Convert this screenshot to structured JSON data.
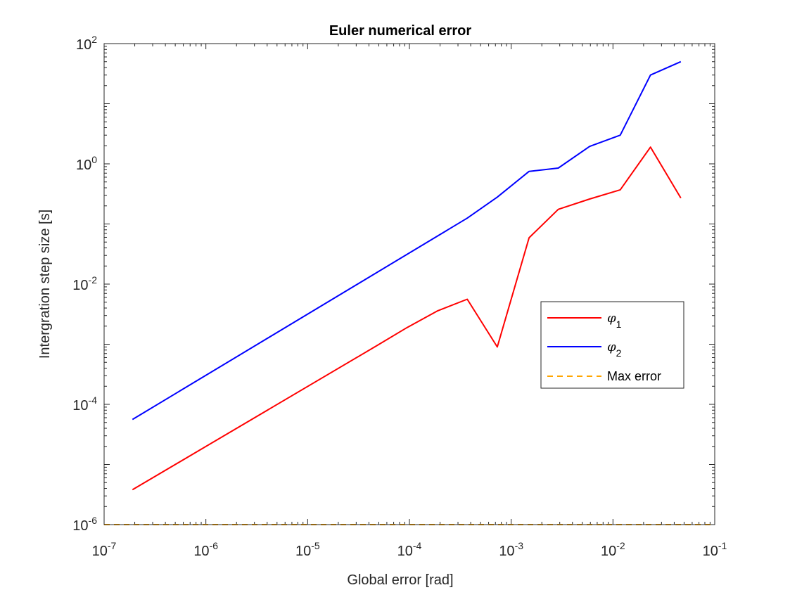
{
  "chart_data": {
    "type": "line",
    "title": "Euler numerical error",
    "xlabel": "Global error [rad]",
    "ylabel": "Intergration step size [s]",
    "xscale": "log",
    "yscale": "log",
    "xlim": [
      1e-07,
      0.1
    ],
    "ylim": [
      1e-06,
      100
    ],
    "grid": false,
    "legend_position": "right",
    "xticks": [
      {
        "base": "10",
        "exp": "-7"
      },
      {
        "base": "10",
        "exp": "-6"
      },
      {
        "base": "10",
        "exp": "-5"
      },
      {
        "base": "10",
        "exp": "-4"
      },
      {
        "base": "10",
        "exp": "-3"
      },
      {
        "base": "10",
        "exp": "-2"
      },
      {
        "base": "10",
        "exp": "-1"
      }
    ],
    "yticks": [
      {
        "base": "10",
        "exp": "-6"
      },
      {
        "base": "10",
        "exp": "-4"
      },
      {
        "base": "10",
        "exp": "-2"
      },
      {
        "base": "10",
        "exp": "0"
      },
      {
        "base": "10",
        "exp": "2"
      }
    ],
    "series": [
      {
        "name": "φ1",
        "name_symbol": "φ",
        "name_sub": "1",
        "color": "#ff0000",
        "dash": "solid",
        "x": [
          1.9e-07,
          4.8e-05,
          9.5e-05,
          0.00019,
          0.00037,
          0.00073,
          0.0015,
          0.0029,
          0.0059,
          0.0118,
          0.0234,
          0.0464
        ],
        "y": [
          3.8e-06,
          0.00095,
          0.0019,
          0.0036,
          0.0056,
          0.0009,
          0.059,
          0.175,
          0.26,
          0.37,
          1.9,
          0.27
        ]
      },
      {
        "name": "φ2",
        "name_symbol": "φ",
        "name_sub": "2",
        "color": "#0000ff",
        "dash": "solid",
        "x": [
          1.9e-07,
          0.00037,
          0.00073,
          0.0015,
          0.0029,
          0.0059,
          0.0118,
          0.0234,
          0.0464
        ],
        "y": [
          5.6e-05,
          0.125,
          0.28,
          0.75,
          0.85,
          1.95,
          3.0,
          30,
          50
        ]
      },
      {
        "name": "Max error",
        "color": "#ffa500",
        "dash": "dashed",
        "x": [
          1e-07,
          0.1
        ],
        "y": [
          1e-06,
          1e-06
        ]
      }
    ]
  }
}
